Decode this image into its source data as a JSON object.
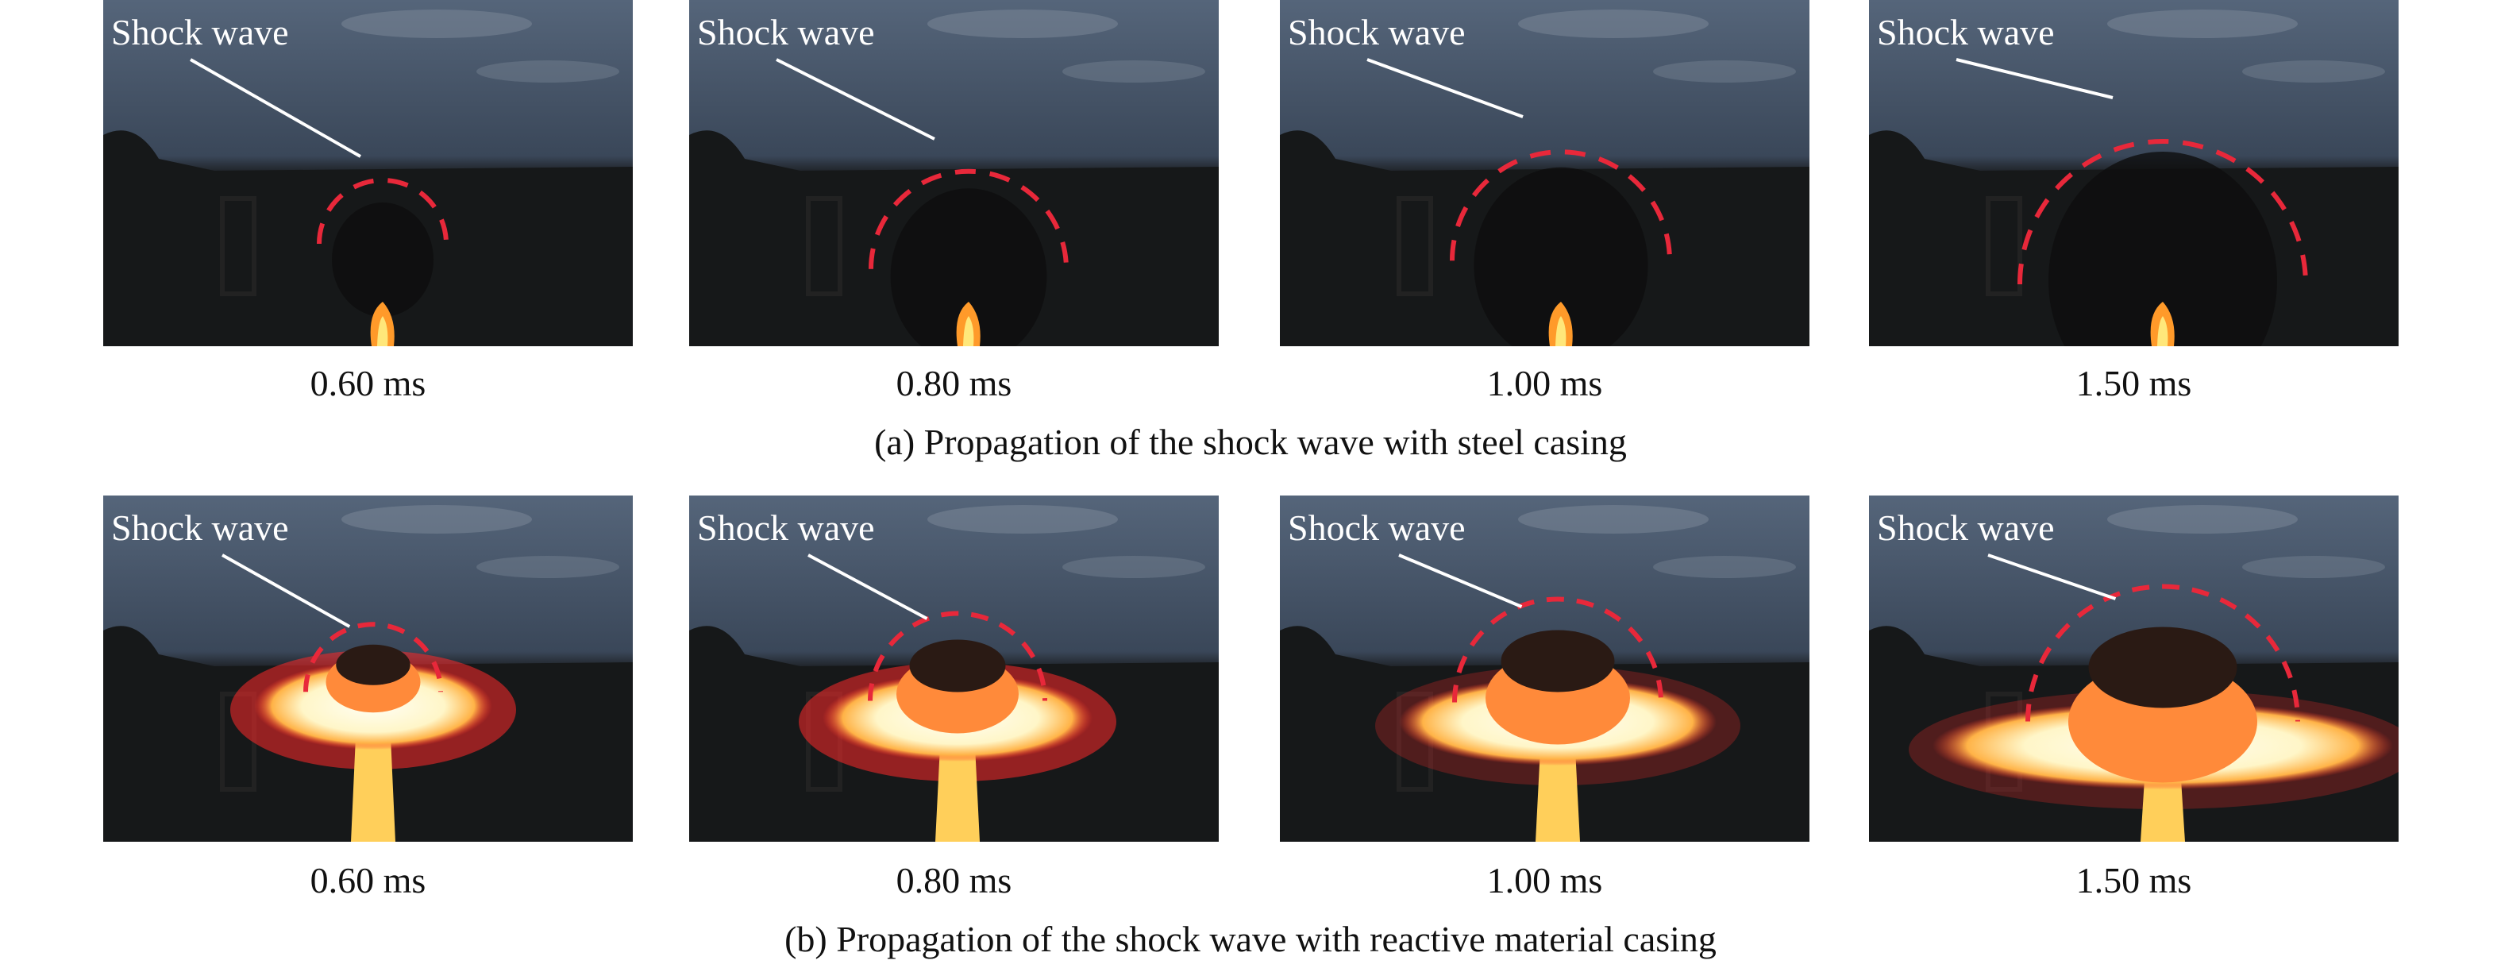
{
  "figure": {
    "rows": [
      {
        "id": "a",
        "caption": "(a) Propagation of the shock wave with steel casing",
        "casing": "steel",
        "panels": [
          {
            "annotation": "Shock wave",
            "time": "0.60 ms"
          },
          {
            "annotation": "Shock wave",
            "time": "0.80 ms"
          },
          {
            "annotation": "Shock wave",
            "time": "1.00 ms"
          },
          {
            "annotation": "Shock wave",
            "time": "1.50 ms"
          }
        ]
      },
      {
        "id": "b",
        "caption": "(b) Propagation of the shock wave with reactive material casing",
        "casing": "reactive",
        "panels": [
          {
            "annotation": "Shock wave",
            "time": "0.60 ms"
          },
          {
            "annotation": "Shock wave",
            "time": "0.80 ms"
          },
          {
            "annotation": "Shock wave",
            "time": "1.00 ms"
          },
          {
            "annotation": "Shock wave",
            "time": "1.50 ms"
          }
        ]
      }
    ],
    "colors": {
      "shock_front": "#e8283a",
      "arrow": "#ffffff",
      "sky": "#3c4a5e",
      "ground": "#141414",
      "fire": "#ffd24a"
    }
  }
}
